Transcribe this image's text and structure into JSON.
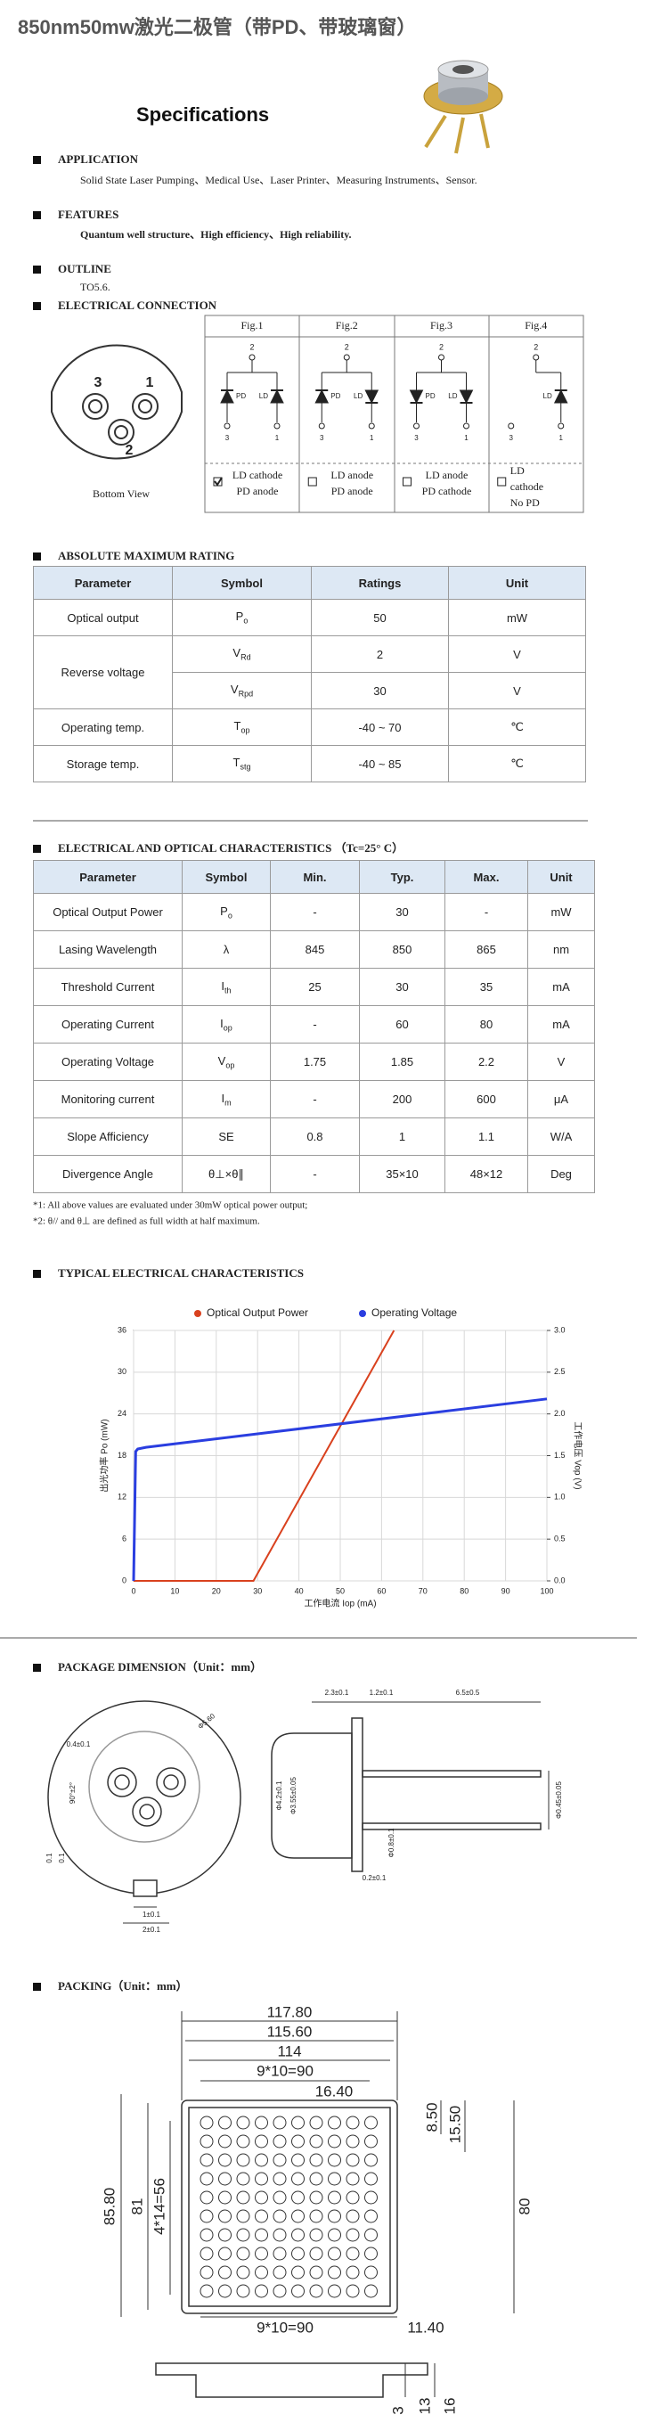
{
  "header": {
    "title": "850nm50mw激光二极管（带PD、带玻璃窗）",
    "heading": "Specifications"
  },
  "application": {
    "label": "APPLICATION",
    "text": "Solid State Laser Pumping、Medical Use、Laser Printer、Measuring Instruments、Sensor."
  },
  "features": {
    "label": "FEATURES",
    "text": "Quantum well structure、High efficiency、High reliability."
  },
  "outline": {
    "label": "OUTLINE",
    "text": "TO5.6."
  },
  "connection": {
    "label": "ELECTRICAL CONNECTION",
    "pins": [
      "3",
      "1",
      "2"
    ],
    "bottom_view": "Bottom View",
    "figs": [
      {
        "title": "Fig.1",
        "labels": {
          "top": "2",
          "left": "3",
          "right": "1",
          "pd": "PD",
          "ld": "LD"
        },
        "lines": [
          "LD cathode",
          "PD anode"
        ]
      },
      {
        "title": "Fig.2",
        "labels": {
          "top": "2",
          "left": "3",
          "right": "1",
          "pd": "PD",
          "ld": "LD"
        },
        "lines": [
          "LD anode",
          "PD anode"
        ]
      },
      {
        "title": "Fig.3",
        "labels": {
          "top": "2",
          "left": "3",
          "right": "1",
          "pd": "PD",
          "ld": "LD"
        },
        "lines": [
          "LD anode",
          "PD cathode"
        ]
      },
      {
        "title": "Fig.4",
        "labels": {
          "top": "2",
          "left": "3",
          "right": "1",
          "ld": "LD"
        },
        "lines": [
          "LD",
          "cathode",
          "No PD"
        ]
      }
    ]
  },
  "abs_max": {
    "label": "ABSOLUTE MAXIMUM RATING",
    "header": [
      "Parameter",
      "Symbol",
      "Ratings",
      "Unit"
    ],
    "rows": [
      [
        "Optical output",
        [
          "P",
          "o"
        ],
        "50",
        "mW"
      ],
      [
        "Reverse voltage",
        [
          "V",
          "Rd"
        ],
        "2",
        "V"
      ],
      [
        [
          "V",
          "Rpd"
        ],
        "30",
        "V"
      ],
      [
        "Operating temp.",
        [
          "T",
          "op"
        ],
        "-40 ~ 70",
        "℃"
      ],
      [
        "Storage temp.",
        [
          "T",
          "stg"
        ],
        "-40 ~ 85",
        "℃"
      ]
    ]
  },
  "eo": {
    "label": "ELECTRICAL AND OPTICAL CHARACTERISTICS （Tc=25° C）",
    "header": [
      "Parameter",
      "Symbol",
      "Min.",
      "Typ.",
      "Max.",
      "Unit"
    ],
    "rows": [
      [
        "Optical Output Power",
        [
          "P",
          "o"
        ],
        "-",
        "30",
        "-",
        "mW"
      ],
      [
        "Lasing Wavelength",
        "λ",
        "845",
        "850",
        "865",
        "nm"
      ],
      [
        "Threshold Current",
        [
          "I",
          "th"
        ],
        "25",
        "30",
        "35",
        "mA"
      ],
      [
        "Operating Current",
        [
          "I",
          "op"
        ],
        "-",
        "60",
        "80",
        "mA"
      ],
      [
        "Operating Voltage",
        [
          "V",
          "op"
        ],
        "1.75",
        "1.85",
        "2.2",
        "V"
      ],
      [
        "Monitoring current",
        [
          "I",
          "m"
        ],
        "-",
        "200",
        "600",
        "μA"
      ],
      [
        "Slope Afficiency",
        "SE",
        "0.8",
        "1",
        "1.1",
        "W/A"
      ],
      [
        "Divergence Angle",
        "θ⊥×θ∥",
        "-",
        "35×10",
        "48×12",
        "Deg"
      ]
    ],
    "notes": [
      "*1: All above values are evaluated under 30mW optical power output;",
      "*2: θ// and θ⊥ are defined as full width at half maximum."
    ]
  },
  "typical": {
    "label": "TYPICAL ELECTRICAL CHARACTERISTICS"
  },
  "chart_data": {
    "type": "line",
    "xlabel": "工作电流 Iop (mA)",
    "ylabel": "出光功率 Po (mW)",
    "y2label": "工作电压 Vop (V)",
    "xlim": [
      0,
      100
    ],
    "xticks": [
      0,
      10,
      20,
      30,
      40,
      50,
      60,
      70,
      80,
      90,
      100
    ],
    "ylim": [
      0,
      36
    ],
    "yticks": [
      0,
      6,
      12,
      18,
      24,
      30,
      36
    ],
    "y2lim": [
      0,
      3
    ],
    "y2ticks": [
      {
        "value": 0,
        "label": "0.0"
      },
      0.5,
      {
        "value": 1,
        "label": "1.0"
      },
      1.5,
      {
        "value": 2,
        "label": "2.0"
      },
      2.5,
      {
        "value": 3,
        "label": "3.0"
      }
    ],
    "grid": true,
    "series": [
      {
        "name": "Optical Output Power",
        "color": "#d9411e",
        "x": [
          0,
          29,
          63
        ],
        "values": [
          0,
          0,
          36
        ]
      },
      {
        "name": "Operating Voltage",
        "color": "#2a3ee0",
        "axis": "y2",
        "x": [
          0,
          0.5,
          1,
          3,
          100
        ],
        "values": [
          0,
          1.55,
          1.58,
          1.6,
          2.18
        ]
      }
    ]
  },
  "package": {
    "label": "PACKAGE DIMENSION（Unit：mm）",
    "dims": [
      "Φ5.60",
      "0.4±0.1",
      "90°±2°",
      "0.1",
      "0.1",
      "1±0.1",
      "2±0.1",
      "2.3±0.1",
      "1.2±0.1",
      "6.5±0.5",
      "Φ4.2±0.1",
      "Φ3.55±0.05",
      "Φ0.8±0.1",
      "0.2±0.1",
      "Φ0.45±0.05"
    ]
  },
  "packing": {
    "label": "PACKING（Unit：mm）",
    "dims": [
      "117.80",
      "115.60",
      "114",
      "9*10=90",
      "16.40",
      "8.50",
      "15.50",
      "80",
      "85.80",
      "81",
      "4*14=56",
      "9*10=90",
      "11.40",
      "3",
      "13",
      "16"
    ]
  }
}
